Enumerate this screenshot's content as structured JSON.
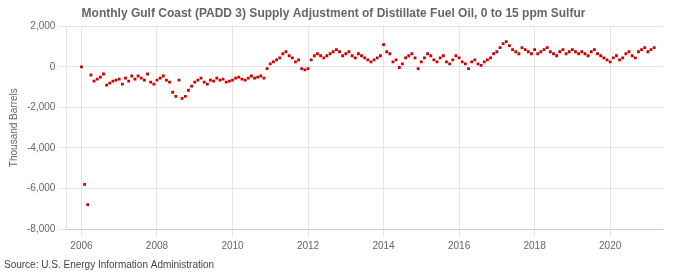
{
  "chart_data": {
    "type": "scatter",
    "title": "Monthly Gulf Coast (PADD 3) Supply Adjustment of Distillate Fuel Oil, 0 to 15 ppm Sulfur",
    "ylabel": "Thousand Barrels",
    "source": "Source: U.S. Energy Information Administration",
    "color": "#cc0000",
    "marker": "square",
    "grid": true,
    "xlim": [
      2005.6,
      2021.4
    ],
    "xticks": [
      2006,
      2008,
      2010,
      2012,
      2014,
      2016,
      2018,
      2020
    ],
    "ylim": [
      -8000,
      2000
    ],
    "yticks": [
      {
        "value": -8000,
        "label": "-8,000"
      },
      {
        "value": -6000,
        "label": "-6,000"
      },
      {
        "value": -4000,
        "label": "-4,000"
      },
      {
        "value": -2000,
        "label": "-2,000"
      },
      0,
      {
        "value": 2000,
        "label": "2,000"
      }
    ],
    "x": [
      2006,
      2006.0833333333,
      2006.1666666667,
      2006.25,
      2006.3333333333,
      2006.4166666667,
      2006.5,
      2006.5833333333,
      2006.6666666667,
      2006.75,
      2006.8333333333,
      2006.9166666667,
      2007,
      2007.0833333333,
      2007.1666666667,
      2007.25,
      2007.3333333333,
      2007.4166666667,
      2007.5,
      2007.5833333333,
      2007.6666666667,
      2007.75,
      2007.8333333333,
      2007.9166666667,
      2008,
      2008.0833333333,
      2008.1666666667,
      2008.25,
      2008.3333333333,
      2008.4166666667,
      2008.5,
      2008.5833333333,
      2008.6666666667,
      2008.75,
      2008.8333333333,
      2008.9166666667,
      2009,
      2009.0833333333,
      2009.1666666667,
      2009.25,
      2009.3333333333,
      2009.4166666667,
      2009.5,
      2009.5833333333,
      2009.6666666667,
      2009.75,
      2009.8333333333,
      2009.9166666667,
      2010,
      2010.0833333333,
      2010.1666666667,
      2010.25,
      2010.3333333333,
      2010.4166666667,
      2010.5,
      2010.5833333333,
      2010.6666666667,
      2010.75,
      2010.8333333333,
      2010.9166666667,
      2011,
      2011.0833333333,
      2011.1666666667,
      2011.25,
      2011.3333333333,
      2011.4166666667,
      2011.5,
      2011.5833333333,
      2011.6666666667,
      2011.75,
      2011.8333333333,
      2011.9166666667,
      2012,
      2012.0833333333,
      2012.1666666667,
      2012.25,
      2012.3333333333,
      2012.4166666667,
      2012.5,
      2012.5833333333,
      2012.6666666667,
      2012.75,
      2012.8333333333,
      2012.9166666667,
      2013,
      2013.0833333333,
      2013.1666666667,
      2013.25,
      2013.3333333333,
      2013.4166666667,
      2013.5,
      2013.5833333333,
      2013.6666666667,
      2013.75,
      2013.8333333333,
      2013.9166666667,
      2014,
      2014.0833333333,
      2014.1666666667,
      2014.25,
      2014.3333333333,
      2014.4166666667,
      2014.5,
      2014.5833333333,
      2014.6666666667,
      2014.75,
      2014.8333333333,
      2014.9166666667,
      2015,
      2015.0833333333,
      2015.1666666667,
      2015.25,
      2015.3333333333,
      2015.4166666667,
      2015.5,
      2015.5833333333,
      2015.6666666667,
      2015.75,
      2015.8333333333,
      2015.9166666667,
      2016,
      2016.0833333333,
      2016.1666666667,
      2016.25,
      2016.3333333333,
      2016.4166666667,
      2016.5,
      2016.5833333333,
      2016.6666666667,
      2016.75,
      2016.8333333333,
      2016.9166666667,
      2017,
      2017.0833333333,
      2017.1666666667,
      2017.25,
      2017.3333333333,
      2017.4166666667,
      2017.5,
      2017.5833333333,
      2017.6666666667,
      2017.75,
      2017.8333333333,
      2017.9166666667,
      2018,
      2018.0833333333,
      2018.1666666667,
      2018.25,
      2018.3333333333,
      2018.4166666667,
      2018.5,
      2018.5833333333,
      2018.6666666667,
      2018.75,
      2018.8333333333,
      2018.9166666667,
      2019,
      2019.0833333333,
      2019.1666666667,
      2019.25,
      2019.3333333333,
      2019.4166666667,
      2019.5,
      2019.5833333333,
      2019.6666666667,
      2019.75,
      2019.8333333333,
      2019.9166666667,
      2020,
      2020.0833333333,
      2020.1666666667,
      2020.25,
      2020.3333333333,
      2020.4166666667,
      2020.5,
      2020.5833333333,
      2020.6666666667,
      2020.75,
      2020.8333333333,
      2020.9166666667,
      2021,
      2021.0833333333,
      2021.1666666667
    ],
    "values": [
      0,
      -5800,
      -6800,
      -400,
      -700,
      -600,
      -500,
      -350,
      -900,
      -800,
      -700,
      -650,
      -600,
      -850,
      -550,
      -700,
      -450,
      -600,
      -450,
      -550,
      -650,
      -350,
      -750,
      -850,
      -650,
      -550,
      -450,
      -650,
      -750,
      -1250,
      -1450,
      -650,
      -1550,
      -1450,
      -1150,
      -950,
      -750,
      -650,
      -550,
      -750,
      -850,
      -650,
      -700,
      -550,
      -650,
      -600,
      -750,
      -700,
      -650,
      -550,
      -500,
      -600,
      -650,
      -550,
      -450,
      -550,
      -500,
      -450,
      -550,
      -80,
      150,
      250,
      350,
      450,
      650,
      750,
      550,
      450,
      250,
      350,
      -80,
      -150,
      -80,
      350,
      550,
      650,
      550,
      450,
      550,
      650,
      750,
      850,
      750,
      550,
      650,
      750,
      550,
      450,
      650,
      550,
      450,
      350,
      250,
      350,
      450,
      550,
      1100,
      750,
      650,
      250,
      350,
      -30,
      150,
      450,
      550,
      650,
      450,
      -80,
      250,
      450,
      650,
      550,
      350,
      250,
      450,
      550,
      250,
      150,
      350,
      550,
      450,
      250,
      150,
      -80,
      250,
      350,
      150,
      80,
      250,
      350,
      450,
      650,
      750,
      950,
      1150,
      1250,
      1050,
      850,
      750,
      650,
      950,
      850,
      750,
      650,
      850,
      650,
      750,
      850,
      950,
      750,
      650,
      550,
      750,
      850,
      650,
      750,
      850,
      750,
      650,
      750,
      650,
      550,
      750,
      850,
      650,
      550,
      450,
      350,
      250,
      450,
      550,
      350,
      450,
      650,
      750,
      550,
      450,
      750,
      850,
      950,
      750,
      850,
      950
    ]
  }
}
